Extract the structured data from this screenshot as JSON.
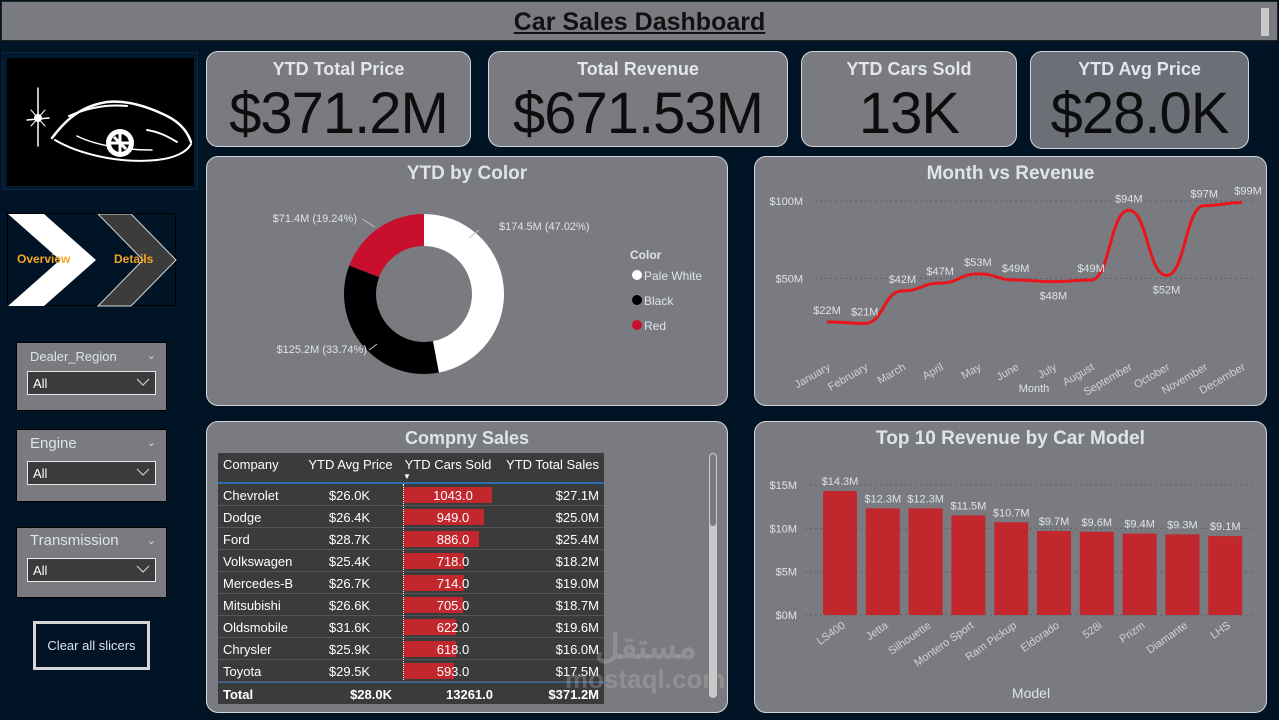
{
  "header": {
    "title": "Car Sales Dashboard"
  },
  "logo": {
    "icon": "car-logo-icon"
  },
  "nav": {
    "items": [
      {
        "label": "Overview",
        "icon": "chevron-right-arrow-icon",
        "active": true
      },
      {
        "label": "Details",
        "icon": "chevron-right-arrow-icon",
        "active": false
      }
    ]
  },
  "slicers": [
    {
      "title": "Dealer_Region",
      "value": "All"
    },
    {
      "title": "Engine",
      "value": "All"
    },
    {
      "title": "Transmission",
      "value": "All"
    }
  ],
  "clear_button": {
    "label": "Clear all slicers"
  },
  "kpis": [
    {
      "title": "YTD Total Price",
      "value": "$371.2M"
    },
    {
      "title": "Total Revenue",
      "value": "$671.53M"
    },
    {
      "title": "YTD Cars Sold",
      "value": "13K"
    },
    {
      "title": "YTD Avg Price",
      "value": "$28.0K"
    }
  ],
  "colors": {
    "background": "#011426",
    "card": "#7a7b80",
    "accent_red": "#c1272d",
    "line_red": "#e8151b",
    "nav_text": "#f5a623"
  },
  "chart_data": [
    {
      "type": "pie",
      "title": "YTD by Color",
      "legend_title": "Color",
      "legend_position": "right",
      "slices": [
        {
          "label": "Pale White",
          "value": 174.5,
          "percent": 47.02,
          "display": "$174.5M (47.02%)",
          "color": "#ffffff"
        },
        {
          "label": "Black",
          "value": 125.2,
          "percent": 33.74,
          "display": "$125.2M (33.74%)",
          "color": "#000000"
        },
        {
          "label": "Red",
          "value": 71.4,
          "percent": 19.24,
          "display": "$71.4M (19.24%)",
          "color": "#c8102e"
        }
      ],
      "unit": "$M"
    },
    {
      "type": "line",
      "title": "Month vs Revenue",
      "xlabel": "Month",
      "ylabel": "",
      "ylim": [
        0,
        100
      ],
      "yticks": [
        {
          "value": 50,
          "label": "$50M"
        },
        {
          "value": 100,
          "label": "$100M"
        }
      ],
      "grid": true,
      "categories": [
        "January",
        "February",
        "March",
        "April",
        "May",
        "June",
        "July",
        "August",
        "September",
        "October",
        "November",
        "December"
      ],
      "values": [
        22,
        21,
        42,
        47,
        53,
        49,
        48,
        49,
        94,
        52,
        97,
        99
      ],
      "labels": [
        "$22M",
        "$21M",
        "$42M",
        "$47M",
        "$53M",
        "$49M",
        "$48M",
        "$49M",
        "$94M",
        "$52M",
        "$97M",
        "$99M"
      ]
    },
    {
      "type": "bar",
      "title": "Top 10 Revenue by Car Model",
      "xlabel": "Model",
      "ylabel": "",
      "ylim": [
        0,
        15
      ],
      "yticks": [
        {
          "value": 0,
          "label": "$0M"
        },
        {
          "value": 5,
          "label": "$5M"
        },
        {
          "value": 10,
          "label": "$10M"
        },
        {
          "value": 15,
          "label": "$15M"
        }
      ],
      "grid": true,
      "categories": [
        "LS400",
        "Jetta",
        "Silhouette",
        "Montero Sport",
        "Ram Pickup",
        "Eldorado",
        "528i",
        "Prizm",
        "Diamante",
        "LHS"
      ],
      "values": [
        14.3,
        12.3,
        12.3,
        11.5,
        10.7,
        9.7,
        9.6,
        9.4,
        9.3,
        9.1
      ],
      "labels": [
        "$14.3M",
        "$12.3M",
        "$12.3M",
        "$11.5M",
        "$10.7M",
        "$9.7M",
        "$9.6M",
        "$9.4M",
        "$9.3M",
        "$9.1M"
      ]
    }
  ],
  "company_sales": {
    "title": "Compny Sales",
    "columns": [
      "Company",
      "YTD Avg Price",
      "YTD Cars Sold",
      "YTD Total Sales"
    ],
    "sorted_column": "YTD Cars Sold",
    "rows": [
      {
        "company": "Chevrolet",
        "avg_price": "$26.0K",
        "cars_sold": 1043,
        "cars_sold_label": "1043.0",
        "total_sales": "$27.1M"
      },
      {
        "company": "Dodge",
        "avg_price": "$26.4K",
        "cars_sold": 949,
        "cars_sold_label": "949.0",
        "total_sales": "$25.0M"
      },
      {
        "company": "Ford",
        "avg_price": "$28.7K",
        "cars_sold": 886,
        "cars_sold_label": "886.0",
        "total_sales": "$25.4M"
      },
      {
        "company": "Volkswagen",
        "avg_price": "$25.4K",
        "cars_sold": 718,
        "cars_sold_label": "718.0",
        "total_sales": "$18.2M"
      },
      {
        "company": "Mercedes-B",
        "avg_price": "$26.7K",
        "cars_sold": 714,
        "cars_sold_label": "714.0",
        "total_sales": "$19.0M"
      },
      {
        "company": "Mitsubishi",
        "avg_price": "$26.6K",
        "cars_sold": 705,
        "cars_sold_label": "705.0",
        "total_sales": "$18.7M"
      },
      {
        "company": "Oldsmobile",
        "avg_price": "$31.6K",
        "cars_sold": 622,
        "cars_sold_label": "622.0",
        "total_sales": "$19.6M"
      },
      {
        "company": "Chrysler",
        "avg_price": "$25.9K",
        "cars_sold": 618,
        "cars_sold_label": "618.0",
        "total_sales": "$16.0M"
      },
      {
        "company": "Toyota",
        "avg_price": "$29.5K",
        "cars_sold": 593,
        "cars_sold_label": "593.0",
        "total_sales": "$17.5M"
      }
    ],
    "total": {
      "label": "Total",
      "avg_price": "$28.0K",
      "cars_sold": "13261.0",
      "total_sales": "$371.2M"
    }
  },
  "watermark": {
    "arabic": "مستقل",
    "latin": "mostaql.com"
  }
}
